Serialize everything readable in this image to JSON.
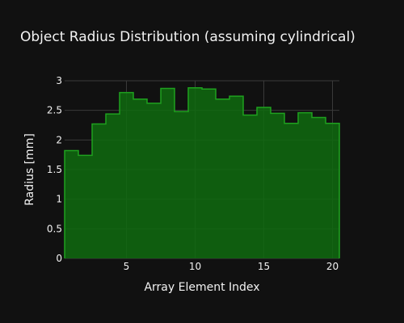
{
  "chart_data": {
    "type": "bar",
    "title": "Object Radius Distribution (assuming cylindrical)",
    "xlabel": "Array Element Index",
    "ylabel": "Radius [mm]",
    "x": [
      1,
      2,
      3,
      4,
      5,
      6,
      7,
      8,
      9,
      10,
      11,
      12,
      13,
      14,
      15,
      16,
      17,
      18,
      19,
      20
    ],
    "values": [
      1.82,
      1.74,
      2.27,
      2.44,
      2.8,
      2.69,
      2.62,
      2.87,
      2.48,
      2.88,
      2.86,
      2.69,
      2.74,
      2.42,
      2.55,
      2.45,
      2.28,
      2.46,
      2.38,
      2.28
    ],
    "xlim": [
      0.5,
      20.5
    ],
    "ylim": [
      0,
      3.0
    ],
    "xticks": [
      5,
      10,
      15,
      20
    ],
    "yticks": [
      0,
      0.5,
      1,
      1.5,
      2,
      2.5,
      3
    ],
    "xtick_labels": [
      "5",
      "10",
      "15",
      "20"
    ],
    "ytick_labels": [
      "0",
      "0.5",
      "1",
      "1.5",
      "2",
      "2.5",
      "3"
    ],
    "grid": true,
    "legend": "none",
    "bar_fill": "#0f6b0f",
    "bar_line": "#1fa11f",
    "background": "#111111"
  }
}
